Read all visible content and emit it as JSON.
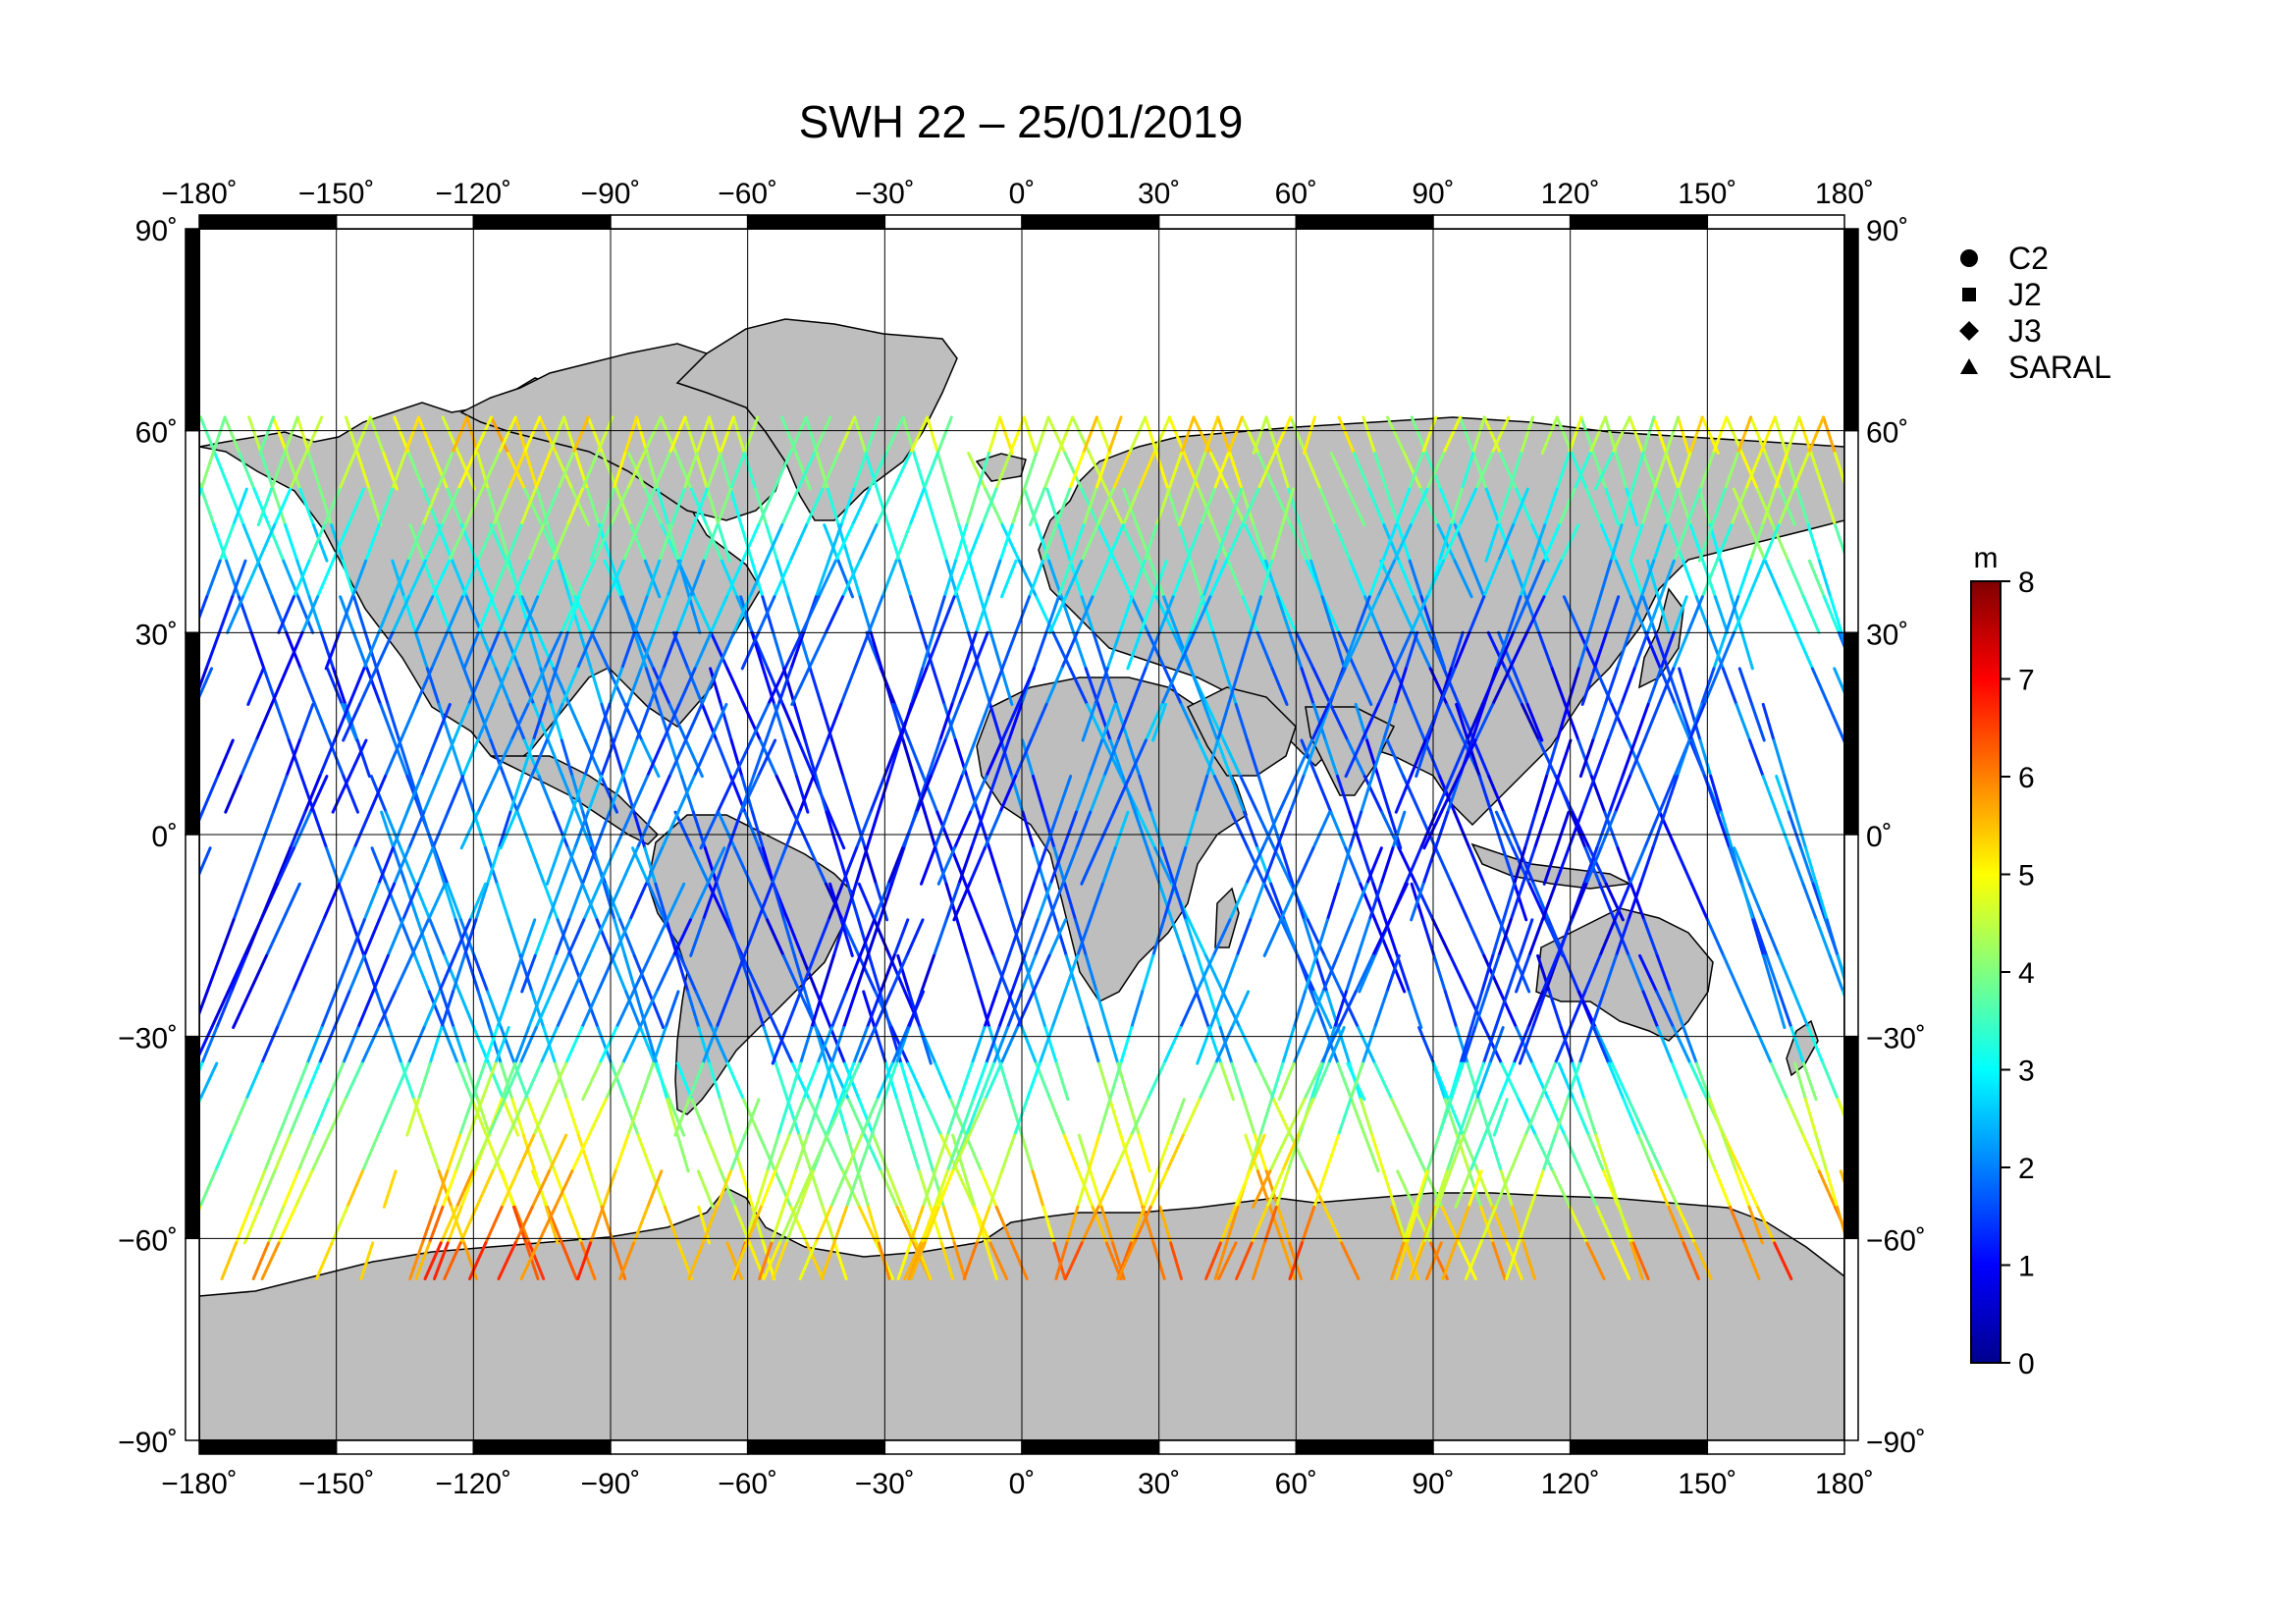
{
  "title": "SWH 22 – 25/01/2019",
  "map": {
    "projection": "equirectangular",
    "lon_range": [
      -180,
      180
    ],
    "lat_range": [
      -90,
      90
    ],
    "land_color": "#bebebe",
    "ocean_color": "#ffffff",
    "grid": true,
    "lon_ticks": [
      "−180˚",
      "−150˚",
      "−120˚",
      "−90˚",
      "−60˚",
      "−30˚",
      "0˚",
      "30˚",
      "60˚",
      "90˚",
      "120˚",
      "150˚",
      "180˚"
    ],
    "lat_ticks_left": [
      "90˚",
      "60˚",
      "30˚",
      "0˚",
      "−30˚",
      "−60˚",
      "−90˚"
    ],
    "lat_ticks_right": [
      "90˚",
      "60˚",
      "30˚",
      "0˚",
      "−30˚",
      "−60˚",
      "−90˚"
    ]
  },
  "legend": {
    "placement": "right",
    "items": [
      {
        "label": "C2",
        "marker": "circle"
      },
      {
        "label": "J2",
        "marker": "square"
      },
      {
        "label": "J3",
        "marker": "diamond"
      },
      {
        "label": "SARAL",
        "marker": "triangle"
      }
    ]
  },
  "colorbar": {
    "unit": "m",
    "min": 0,
    "max": 8,
    "ticks": [
      "0",
      "1",
      "2",
      "3",
      "4",
      "5",
      "6",
      "7",
      "8"
    ],
    "colors": [
      "#00008f",
      "#0000ff",
      "#0080ff",
      "#00ffff",
      "#80ff80",
      "#ffff00",
      "#ff8000",
      "#ff0000",
      "#800000"
    ]
  }
}
